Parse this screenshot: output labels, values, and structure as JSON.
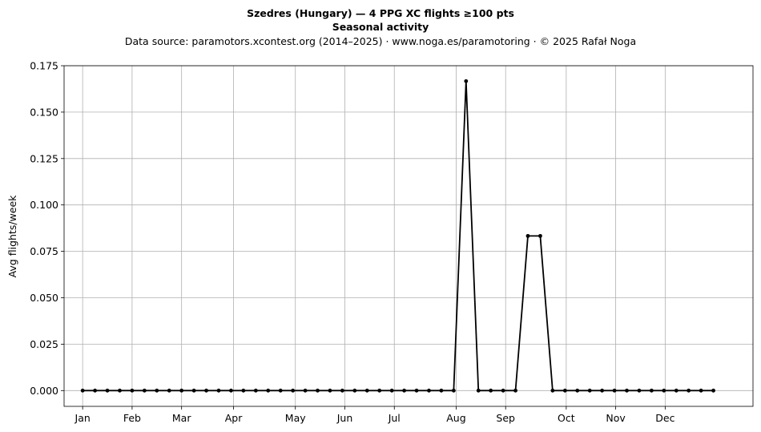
{
  "chart_data": {
    "type": "line",
    "title": "Szedres (Hungary)  —  4 PPG XC flights ≥100 pts",
    "title_line2": "Seasonal activity",
    "subtitle": "Data source: paramotors.xcontest.org (2014–2025)  ·  www.noga.es/paramotoring  ·  © 2025 Rafał Noga",
    "xlabel": "",
    "ylabel": "Avg flights/week",
    "x_unit": "week",
    "xlim": [
      -1.5,
      54.2
    ],
    "ylim": [
      -0.0085,
      0.175
    ],
    "yticks": [
      0.0,
      0.025,
      0.05,
      0.075,
      0.1,
      0.125,
      0.15,
      0.175
    ],
    "ytick_labels": [
      "0.000",
      "0.025",
      "0.050",
      "0.075",
      "0.100",
      "0.125",
      "0.150",
      "0.175"
    ],
    "xticks": [
      {
        "label": "Jan",
        "x": 0
      },
      {
        "label": "Feb",
        "x": 4
      },
      {
        "label": "Mar",
        "x": 8
      },
      {
        "label": "Apr",
        "x": 12.2
      },
      {
        "label": "May",
        "x": 17.2
      },
      {
        "label": "Jun",
        "x": 21.2
      },
      {
        "label": "Jul",
        "x": 25.2
      },
      {
        "label": "Aug",
        "x": 30.2
      },
      {
        "label": "Sep",
        "x": 34.2
      },
      {
        "label": "Oct",
        "x": 39.1
      },
      {
        "label": "Nov",
        "x": 43.1
      },
      {
        "label": "Dec",
        "x": 47.1
      }
    ],
    "grid": true,
    "line_color": "#000000",
    "grid_color": "#b0b0b0",
    "series": [
      {
        "x": [
          0,
          1,
          2,
          3,
          4,
          5,
          6,
          7,
          8,
          9,
          10,
          11,
          12,
          13,
          14,
          15,
          16,
          17,
          18,
          19,
          20,
          21,
          22,
          23,
          24,
          25,
          26,
          27,
          28,
          29,
          30,
          31,
          32,
          33,
          34,
          35,
          36,
          37,
          38,
          39,
          40,
          41,
          42,
          43,
          44,
          45,
          46,
          47,
          48,
          49,
          50,
          51
        ],
        "values": [
          0,
          0,
          0,
          0,
          0,
          0,
          0,
          0,
          0,
          0,
          0,
          0,
          0,
          0,
          0,
          0,
          0,
          0,
          0,
          0,
          0,
          0,
          0,
          0,
          0,
          0,
          0,
          0,
          0,
          0,
          0,
          0.1667,
          0,
          0,
          0,
          0,
          0.0833,
          0.0833,
          0,
          0,
          0,
          0,
          0,
          0,
          0,
          0,
          0,
          0,
          0,
          0,
          0,
          0
        ]
      }
    ]
  }
}
